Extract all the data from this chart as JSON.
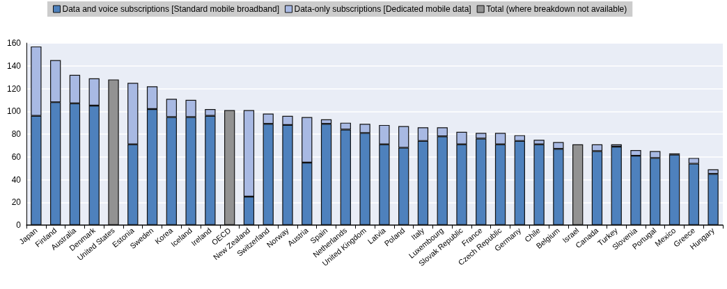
{
  "chart_data": {
    "type": "bar",
    "stacked": true,
    "categories": [
      "Japan",
      "Finland",
      "Australia",
      "Denmark",
      "United States",
      "Estonia",
      "Sweden",
      "Korea",
      "Iceland",
      "Ireland",
      "OECD",
      "New Zealand",
      "Switzerland",
      "Norway",
      "Austria",
      "Spain",
      "Netherlands",
      "United Kingdom",
      "Latvia",
      "Poland",
      "Italy",
      "Luxembourg",
      "Slovak Republic",
      "France",
      "Czech Republic",
      "Germany",
      "Chile",
      "Belgium",
      "Israel",
      "Canada",
      "Turkey",
      "Slovenia",
      "Portugal",
      "Mexico",
      "Greece",
      "Hungary"
    ],
    "series": [
      {
        "name": "Data and voice subscriptions [Standard mobile broadband]",
        "color": "#4e81bd",
        "values": [
          96,
          108,
          107,
          105,
          null,
          71,
          102,
          95,
          95,
          96,
          null,
          25,
          89,
          88,
          55,
          89,
          84,
          81,
          71,
          68,
          74,
          78,
          71,
          76,
          71,
          74,
          71,
          67,
          null,
          65,
          69,
          61,
          59,
          62,
          54,
          45
        ]
      },
      {
        "name": "Data-only subscriptions [Dedicated mobile data]",
        "color": "#a8b9e3",
        "values": [
          61,
          37,
          25,
          24,
          null,
          54,
          20,
          16,
          15,
          6,
          null,
          76,
          9,
          8,
          40,
          4,
          6,
          8,
          17,
          19,
          12,
          8,
          11,
          5,
          10,
          5,
          4,
          6,
          null,
          6,
          2,
          5,
          6,
          1,
          5,
          4
        ]
      },
      {
        "name": "Total (where breakdown not available)",
        "color": "#929292",
        "values": [
          null,
          null,
          null,
          null,
          128,
          null,
          null,
          null,
          null,
          null,
          101,
          null,
          null,
          null,
          null,
          null,
          null,
          null,
          null,
          null,
          null,
          null,
          null,
          null,
          null,
          null,
          null,
          null,
          71,
          null,
          null,
          null,
          null,
          null,
          null,
          null
        ]
      }
    ],
    "ylim": [
      0,
      160
    ],
    "yticks": [
      0,
      20,
      40,
      60,
      80,
      100,
      120,
      140,
      160
    ],
    "grid": "y",
    "legend": "top"
  }
}
